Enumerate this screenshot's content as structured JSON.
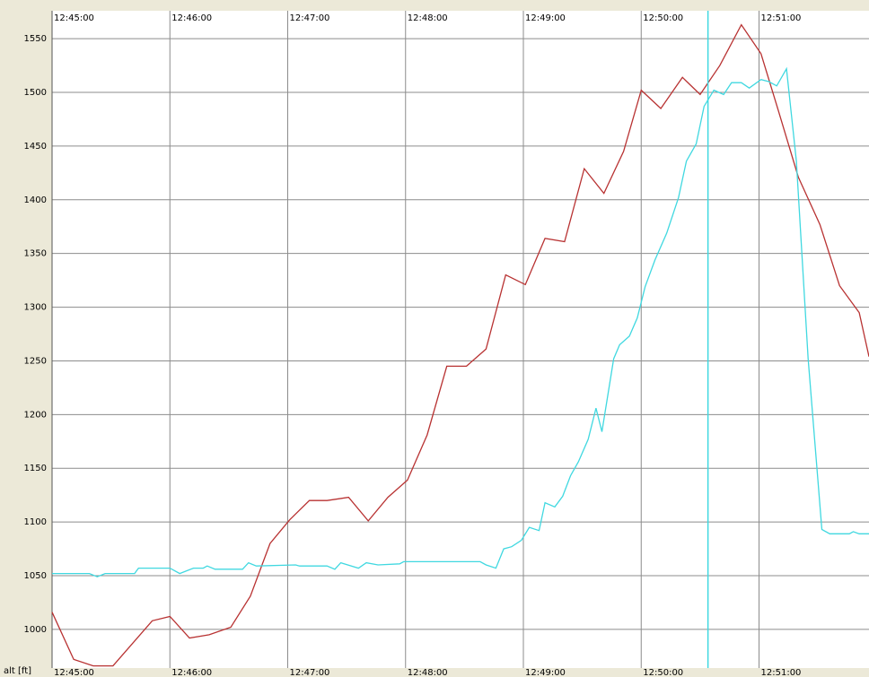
{
  "chart_data": {
    "type": "line",
    "ylabel": "alt [ft]",
    "xlim": [
      "12:45:00",
      "12:51:56"
    ],
    "xticks": [
      "12:45:00",
      "12:46:00",
      "12:47:00",
      "12:48:00",
      "12:49:00",
      "12:50:00",
      "12:51:00"
    ],
    "ylim": [
      964,
      1576
    ],
    "yticks": [
      1000,
      1050,
      1100,
      1150,
      1200,
      1250,
      1300,
      1350,
      1400,
      1450,
      1500,
      1550
    ],
    "grid": true,
    "cursor": {
      "x": "12:50:34",
      "color": "#40d8e0"
    },
    "series": [
      {
        "color": "#b83232",
        "x": [
          "12:45:00",
          "12:45:11",
          "12:45:21",
          "12:45:31",
          "12:45:51",
          "12:46:00",
          "12:46:10",
          "12:46:20",
          "12:46:31",
          "12:46:41",
          "12:46:51",
          "12:47:01",
          "12:47:11",
          "12:47:20",
          "12:47:31",
          "12:47:41",
          "12:47:51",
          "12:48:01",
          "12:48:11",
          "12:48:21",
          "12:48:31",
          "12:48:41",
          "12:48:51",
          "12:49:01",
          "12:49:11",
          "12:49:21",
          "12:49:31",
          "12:49:41",
          "12:49:51",
          "12:50:00",
          "12:50:10",
          "12:50:21",
          "12:50:30",
          "12:50:40",
          "12:50:51",
          "12:51:01",
          "12:51:10",
          "12:51:20",
          "12:51:31",
          "12:51:41",
          "12:51:51",
          "12:51:56"
        ],
        "values": [
          1016,
          972,
          966,
          966,
          1008,
          1012,
          992,
          995,
          1002,
          1031,
          1080,
          1102,
          1120,
          1120,
          1123,
          1101,
          1123,
          1139,
          1181,
          1245,
          1245,
          1261,
          1330,
          1321,
          1364,
          1361,
          1429,
          1406,
          1445,
          1502,
          1485,
          1514,
          1498,
          1525,
          1563,
          1536,
          1482,
          1421,
          1377,
          1320,
          1295,
          1254
        ]
      },
      {
        "color": "#40d8e0",
        "x": [
          "12:45:00",
          "12:45:19",
          "12:45:23",
          "12:45:27",
          "12:45:42",
          "12:45:44",
          "12:46:00",
          "12:46:05",
          "12:46:12",
          "12:46:17",
          "12:46:19",
          "12:46:23",
          "12:46:37",
          "12:46:40",
          "12:46:44",
          "12:47:04",
          "12:47:06",
          "12:47:20",
          "12:47:24",
          "12:47:27",
          "12:47:36",
          "12:47:40",
          "12:47:46",
          "12:47:57",
          "12:47:59",
          "12:48:38",
          "12:48:41",
          "12:48:46",
          "12:48:50",
          "12:48:54",
          "12:48:59",
          "12:49:03",
          "12:49:08",
          "12:49:11",
          "12:49:16",
          "12:49:20",
          "12:49:24",
          "12:49:28",
          "12:49:33",
          "12:49:37",
          "12:49:40",
          "12:49:46",
          "12:49:49",
          "12:49:54",
          "12:49:58",
          "12:50:02",
          "12:50:07",
          "12:50:13",
          "12:50:19",
          "12:50:23",
          "12:50:28",
          "12:50:32",
          "12:50:37",
          "12:50:42",
          "12:50:46",
          "12:50:51",
          "12:50:55",
          "12:51:01",
          "12:51:05",
          "12:51:09",
          "12:51:14",
          "12:51:19",
          "12:51:25",
          "12:51:32",
          "12:51:36",
          "12:51:46",
          "12:51:48",
          "12:51:51",
          "12:51:56"
        ],
        "values": [
          1052,
          1052,
          1049,
          1052,
          1052,
          1057,
          1057,
          1052,
          1057,
          1057,
          1059,
          1056,
          1056,
          1062,
          1059,
          1060,
          1059,
          1059,
          1056,
          1062,
          1057,
          1062,
          1060,
          1061,
          1063,
          1063,
          1060,
          1057,
          1075,
          1077,
          1083,
          1095,
          1092,
          1118,
          1114,
          1124,
          1143,
          1156,
          1177,
          1206,
          1184,
          1252,
          1265,
          1273,
          1290,
          1319,
          1344,
          1369,
          1402,
          1436,
          1452,
          1487,
          1502,
          1498,
          1509,
          1509,
          1504,
          1512,
          1510,
          1506,
          1522,
          1436,
          1252,
          1093,
          1089,
          1089,
          1091,
          1089,
          1089
        ]
      }
    ]
  }
}
